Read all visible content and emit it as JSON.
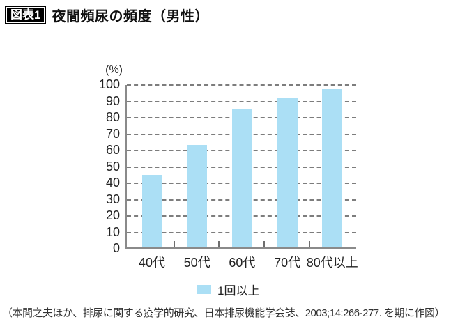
{
  "header": {
    "badge": "図表1",
    "title": "夜間頻尿の頻度（男性）"
  },
  "chart_data": {
    "type": "bar",
    "title": "夜間頻尿の頻度（男性）",
    "unit_label": "(%)",
    "categories": [
      "40代",
      "50代",
      "60代",
      "70代",
      "80代以上"
    ],
    "series": [
      {
        "name": "1回以上",
        "values": [
          44,
          62,
          84,
          91,
          96
        ]
      }
    ],
    "ylim": [
      0,
      100
    ],
    "ytick_interval": 10,
    "yticks": [
      0,
      10,
      20,
      30,
      40,
      50,
      60,
      70,
      80,
      90,
      100
    ],
    "grid": "horizontal-dashed",
    "legend_position": "bottom",
    "bar_color": "#abdff5",
    "axis_color": "#8a8a8a",
    "gridline_color": "#7d7d7d"
  },
  "legend": {
    "items": [
      {
        "label": "1回以上",
        "color": "#abdff5"
      }
    ]
  },
  "footer": {
    "source": "（本間之夫ほか、排尿に関する疫学的研究、日本排尿機能学会誌、2003;14:266-277. を期に作図）"
  }
}
